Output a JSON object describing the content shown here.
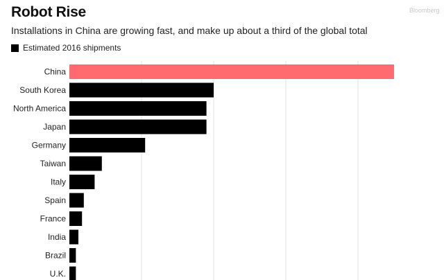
{
  "header": {
    "title": "Robot Rise",
    "subtitle": "Installations in China are growing fast, and make up about a third of the global total",
    "watermark": "Bloomberg"
  },
  "legend": {
    "label": "Estimated 2016 shipments"
  },
  "colors": {
    "highlight": "#ff6b6e",
    "bar": "#000000",
    "grid": "#e3e3e3"
  },
  "chart_data": {
    "type": "bar",
    "orientation": "horizontal",
    "categories": [
      "China",
      "South Korea",
      "North America",
      "Japan",
      "Germany",
      "Taiwan",
      "Italy",
      "Spain",
      "France",
      "India",
      "Brazil",
      "U.K."
    ],
    "series": [
      {
        "name": "Estimated 2016 shipments",
        "values": [
          90000,
          40000,
          38000,
          38000,
          21000,
          9000,
          7000,
          4000,
          3500,
          2500,
          1800,
          1800
        ]
      }
    ],
    "highlight_category": "China",
    "xlim": [
      0,
      100000
    ],
    "grid": true,
    "legend_position": "top-left"
  }
}
